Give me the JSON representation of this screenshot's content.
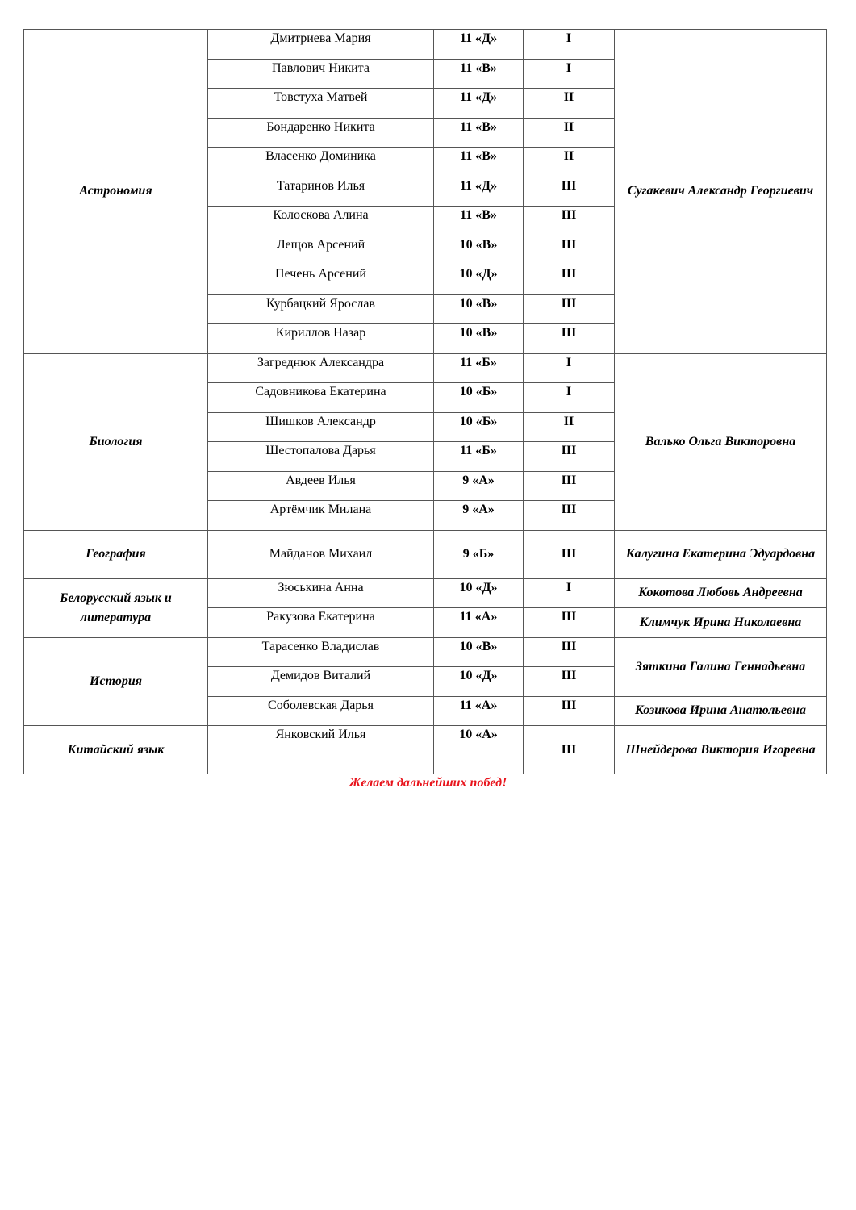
{
  "groups": [
    {
      "subject": "Астрономия",
      "teachers": [
        "Сугакевич Александр Георгиевич"
      ],
      "teacher_spans": [
        11
      ],
      "students": [
        [
          "Дмитриева Мария",
          "11 «Д»",
          "I"
        ],
        [
          "Павлович Никита",
          "11 «В»",
          "I"
        ],
        [
          "Товстуха Матвей",
          "11 «Д»",
          "II"
        ],
        [
          "Бондаренко Никита",
          "11 «В»",
          "II"
        ],
        [
          "Власенко Доминика",
          "11 «В»",
          "II"
        ],
        [
          "Татаринов Илья",
          "11 «Д»",
          "III"
        ],
        [
          "Колоскова Алина",
          "11 «В»",
          "III"
        ],
        [
          "Лещов Арсений",
          "10 «В»",
          "III"
        ],
        [
          "Печень Арсений",
          "10 «Д»",
          "III"
        ],
        [
          "Курбацкий Ярослав",
          "10 «В»",
          "III"
        ],
        [
          "Кириллов Назар",
          "10 «В»",
          "III"
        ]
      ]
    },
    {
      "subject": "Биология",
      "teachers": [
        "Валько Ольга Викторовна"
      ],
      "teacher_spans": [
        6
      ],
      "students": [
        [
          "Загреднюк Александра",
          "11 «Б»",
          "I"
        ],
        [
          "Садовникова Екатерина",
          "10 «Б»",
          "I"
        ],
        [
          "Шишков Александр",
          "10 «Б»",
          "II"
        ],
        [
          "Шестопалова Дарья",
          "11 «Б»",
          "III"
        ],
        [
          "Авдеев Илья",
          "9 «А»",
          "III"
        ],
        [
          "Артёмчик Милана",
          "9 «А»",
          "III"
        ]
      ]
    },
    {
      "subject": "География",
      "teachers": [
        "Калугина Екатерина Эдуардовна"
      ],
      "teacher_spans": [
        1
      ],
      "students": [
        [
          "Майданов Михаил",
          "9 «Б»",
          "III"
        ]
      ]
    },
    {
      "subject": "Белорусский язык и литература",
      "teachers": [
        "Кокотова Любовь Андреевна",
        "Климчук Ирина Николаевна"
      ],
      "teacher_spans": [
        1,
        1
      ],
      "students": [
        [
          "Зюськина Анна",
          "10 «Д»",
          "I"
        ],
        [
          "Ракузова Екатерина",
          "11 «А»",
          "III"
        ]
      ]
    },
    {
      "subject": "История",
      "teachers": [
        "Зяткина Галина Геннадьевна",
        "Козикова Ирина Анатольевна"
      ],
      "teacher_spans": [
        2,
        1
      ],
      "students": [
        [
          "Тарасенко Владислав",
          "10 «В»",
          "III"
        ],
        [
          "Демидов Виталий",
          "10 «Д»",
          "III"
        ],
        [
          "Соболевская Дарья",
          "11 «А»",
          "III"
        ]
      ]
    },
    {
      "subject": "Китайский язык",
      "teachers": [
        "Шнейдерова Виктория Игоревна"
      ],
      "teacher_spans": [
        1
      ],
      "students": [
        [
          "Янковский Илья",
          "10 «А»",
          "III"
        ]
      ]
    }
  ],
  "footer": "Желаем дальнейших побед!"
}
